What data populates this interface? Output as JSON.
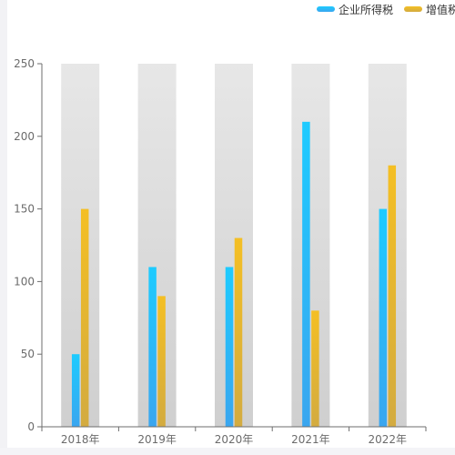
{
  "chart_data": {
    "type": "bar",
    "categories": [
      "2018年",
      "2019年",
      "2020年",
      "2021年",
      "2022年"
    ],
    "series": [
      {
        "name": "企业所得税",
        "values": [
          50,
          110,
          110,
          210,
          150
        ]
      },
      {
        "name": "增值税",
        "values": [
          150,
          90,
          130,
          80,
          180
        ]
      }
    ],
    "ylim": [
      0,
      250
    ],
    "yticks": [
      0,
      50,
      100,
      150,
      200,
      250
    ],
    "legend_position": "top-right",
    "colors": {
      "series1_top": "#1ecbff",
      "series1_bottom": "#3aa6ef",
      "series2_top": "#f4bf24",
      "series2_bottom": "#d3ab40",
      "band_top": "#e7e7e7",
      "band_bottom": "#cfcfcf",
      "axis": "#6e6e6e"
    }
  }
}
